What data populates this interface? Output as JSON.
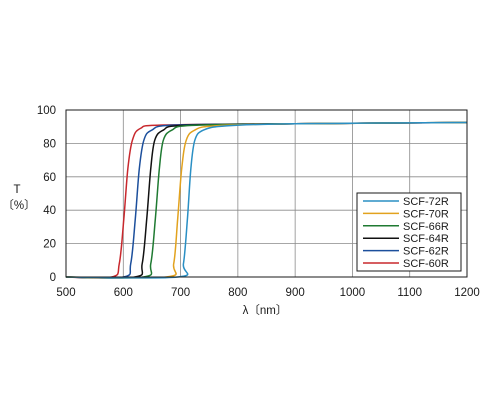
{
  "chart_data": {
    "type": "line",
    "ylabel_line1": "T",
    "ylabel_line2": "〔%〕",
    "xlabel": "λ〔nm〕",
    "xlim": [
      500,
      1200
    ],
    "ylim": [
      0,
      100
    ],
    "x_ticks": [
      500,
      600,
      700,
      800,
      900,
      1000,
      1100,
      1200
    ],
    "y_ticks": [
      0,
      20,
      40,
      60,
      80,
      100
    ],
    "grid": true,
    "legend_position": "center-right",
    "series": [
      {
        "name": "SCF-72R",
        "color": "#2a8fc4",
        "cutoff": 715,
        "plateau": 92.5,
        "rise": [
          [
            695,
            0
          ],
          [
            705,
            8
          ],
          [
            712,
            35
          ],
          [
            718,
            65
          ],
          [
            725,
            82
          ],
          [
            740,
            88
          ],
          [
            780,
            90.5
          ],
          [
            900,
            91.8
          ],
          [
            1200,
            92.5
          ]
        ]
      },
      {
        "name": "SCF-70R",
        "color": "#e2a21e",
        "cutoff": 700,
        "plateau": 92.5,
        "rise": [
          [
            675,
            0
          ],
          [
            688,
            8
          ],
          [
            695,
            35
          ],
          [
            702,
            65
          ],
          [
            710,
            82
          ],
          [
            725,
            88
          ],
          [
            760,
            90.5
          ],
          [
            900,
            91.8
          ],
          [
            1200,
            92.5
          ]
        ]
      },
      {
        "name": "SCF-66R",
        "color": "#1f7a32",
        "cutoff": 660,
        "plateau": 92.5,
        "rise": [
          [
            635,
            0
          ],
          [
            648,
            8
          ],
          [
            656,
            35
          ],
          [
            663,
            65
          ],
          [
            670,
            82
          ],
          [
            685,
            88
          ],
          [
            720,
            90.8
          ],
          [
            900,
            91.8
          ],
          [
            1200,
            92.5
          ]
        ]
      },
      {
        "name": "SCF-64R",
        "color": "#111111",
        "cutoff": 645,
        "plateau": 92.5,
        "rise": [
          [
            620,
            0
          ],
          [
            633,
            8
          ],
          [
            641,
            35
          ],
          [
            648,
            65
          ],
          [
            655,
            82
          ],
          [
            670,
            88
          ],
          [
            705,
            90.8
          ],
          [
            900,
            91.8
          ],
          [
            1200,
            92.5
          ]
        ]
      },
      {
        "name": "SCF-62R",
        "color": "#1c4f9c",
        "cutoff": 625,
        "plateau": 92.5,
        "rise": [
          [
            600,
            0
          ],
          [
            613,
            8
          ],
          [
            621,
            35
          ],
          [
            628,
            65
          ],
          [
            636,
            82
          ],
          [
            650,
            88
          ],
          [
            690,
            91
          ],
          [
            900,
            91.8
          ],
          [
            1200,
            92.5
          ]
        ]
      },
      {
        "name": "SCF-60R",
        "color": "#c8282d",
        "cutoff": 605,
        "plateau": 92.5,
        "rise": [
          [
            580,
            0
          ],
          [
            593,
            8
          ],
          [
            601,
            35
          ],
          [
            608,
            65
          ],
          [
            616,
            82
          ],
          [
            630,
            89
          ],
          [
            670,
            91
          ],
          [
            900,
            91.8
          ],
          [
            1200,
            92.5
          ]
        ]
      }
    ]
  }
}
